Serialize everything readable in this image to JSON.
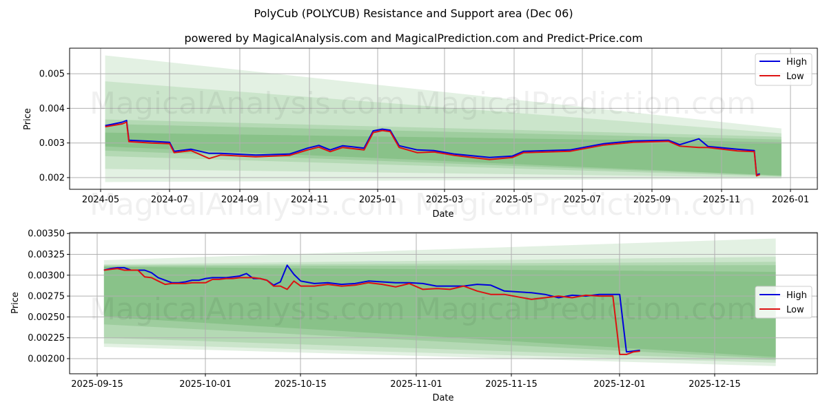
{
  "header": {
    "title": "PolyCub (POLYCUB) Resistance and Support area (Dec 06)",
    "subtitle": "powered by MagicalAnalysis.com and MagicalPrediction.com and Predict-Price.com"
  },
  "watermarks": [
    "MagicalAnalysis.com",
    "MagicalPrediction.com"
  ],
  "colors": {
    "high": "#0000dd",
    "low": "#dd1111",
    "band": "#5aaa5a",
    "grid": "#b0b0b0"
  },
  "chart_data": [
    {
      "type": "line",
      "title": "",
      "xlabel": "Date",
      "ylabel": "Price",
      "x_ticks": [
        "2024-05",
        "2024-07",
        "2024-09",
        "2024-11",
        "2025-01",
        "2025-03",
        "2025-05",
        "2025-07",
        "2025-09",
        "2025-11",
        "2026-01"
      ],
      "y_ticks": [
        "0.002",
        "0.003",
        "0.004",
        "0.005"
      ],
      "ylim": [
        0.00168,
        0.00575
      ],
      "grid": true,
      "legend": {
        "position": "upper right",
        "entries": [
          "High",
          "Low"
        ]
      },
      "x": [
        "2024-05-05",
        "2024-05-20",
        "2024-05-24",
        "2024-05-26",
        "2024-06-15",
        "2024-07-01",
        "2024-07-05",
        "2024-07-20",
        "2024-08-05",
        "2024-08-15",
        "2024-09-15",
        "2024-10-15",
        "2024-10-31",
        "2024-11-10",
        "2024-11-20",
        "2024-12-01",
        "2024-12-20",
        "2024-12-28",
        "2025-01-05",
        "2025-01-12",
        "2025-01-20",
        "2025-02-05",
        "2025-02-20",
        "2025-03-10",
        "2025-04-10",
        "2025-04-30",
        "2025-05-10",
        "2025-06-20",
        "2025-07-20",
        "2025-08-15",
        "2025-09-15",
        "2025-09-25",
        "2025-10-12",
        "2025-10-20",
        "2025-11-15",
        "2025-11-30",
        "2025-12-02",
        "2025-12-05"
      ],
      "series": [
        {
          "name": "High",
          "values": [
            0.0035,
            0.0036,
            0.00365,
            0.00308,
            0.00305,
            0.00302,
            0.00276,
            0.00282,
            0.0027,
            0.0027,
            0.00265,
            0.00268,
            0.00285,
            0.00293,
            0.0028,
            0.00292,
            0.00285,
            0.00335,
            0.0034,
            0.00337,
            0.00292,
            0.0028,
            0.00278,
            0.00268,
            0.00258,
            0.00262,
            0.00276,
            0.0028,
            0.00298,
            0.00306,
            0.00308,
            0.00295,
            0.00312,
            0.0029,
            0.00282,
            0.00278,
            0.00208,
            0.00211
          ]
        },
        {
          "name": "Low",
          "values": [
            0.00347,
            0.00355,
            0.0036,
            0.00304,
            0.003,
            0.00298,
            0.00272,
            0.00278,
            0.00255,
            0.00265,
            0.0026,
            0.00264,
            0.0028,
            0.00288,
            0.00275,
            0.00287,
            0.0028,
            0.0033,
            0.00336,
            0.00333,
            0.00287,
            0.00272,
            0.00274,
            0.00264,
            0.00252,
            0.00258,
            0.00272,
            0.00276,
            0.00294,
            0.00302,
            0.00305,
            0.00291,
            0.00287,
            0.00287,
            0.00277,
            0.00275,
            0.00205,
            0.00209
          ]
        }
      ],
      "bands": [
        {
          "x": [
            "2024-05-05",
            "2025-12-24"
          ],
          "upper": [
            0.00553,
            0.00342
          ],
          "lower": [
            0.00187,
            0.00197
          ]
        },
        {
          "x": [
            "2024-05-05",
            "2025-12-24"
          ],
          "upper": [
            0.00478,
            0.00328
          ],
          "lower": [
            0.00225,
            0.002
          ]
        },
        {
          "x": [
            "2024-05-05",
            "2025-12-24"
          ],
          "upper": [
            0.00368,
            0.00318
          ],
          "lower": [
            0.00262,
            0.00203
          ]
        },
        {
          "x": [
            "2024-05-05",
            "2025-12-24"
          ],
          "upper": [
            0.00355,
            0.0031
          ],
          "lower": [
            0.00278,
            0.00205
          ]
        },
        {
          "x": [
            "2024-05-05",
            "2025-12-24"
          ],
          "upper": [
            0.0033,
            0.00302
          ],
          "lower": [
            0.0029,
            0.00206
          ]
        }
      ]
    },
    {
      "type": "line",
      "title": "",
      "xlabel": "Date",
      "ylabel": "Price",
      "x_ticks": [
        "2025-09-15",
        "2025-10-01",
        "2025-10-15",
        "2025-11-01",
        "2025-11-15",
        "2025-12-01",
        "2025-12-15"
      ],
      "y_ticks": [
        "0.00200",
        "0.00225",
        "0.00250",
        "0.00275",
        "0.00300",
        "0.00325",
        "0.00350"
      ],
      "ylim": [
        0.00183,
        0.00352
      ],
      "grid": true,
      "legend": {
        "position": "center right",
        "entries": [
          "High",
          "Low"
        ]
      },
      "x": [
        "09-16",
        "09-17",
        "09-18",
        "09-19",
        "09-20",
        "09-21",
        "09-22",
        "09-23",
        "09-24",
        "09-25",
        "09-26",
        "09-27",
        "09-28",
        "09-29",
        "09-30",
        "10-01",
        "10-02",
        "10-03",
        "10-04",
        "10-05",
        "10-06",
        "10-07",
        "10-08",
        "10-09",
        "10-10",
        "10-11",
        "10-12",
        "10-13",
        "10-14",
        "10-15",
        "10-17",
        "10-19",
        "10-21",
        "10-23",
        "10-25",
        "10-27",
        "10-29",
        "10-31",
        "11-02",
        "11-04",
        "11-06",
        "11-08",
        "11-10",
        "11-12",
        "11-14",
        "11-16",
        "11-18",
        "11-20",
        "11-22",
        "11-24",
        "11-26",
        "11-28",
        "11-30",
        "12-01",
        "12-02",
        "12-03",
        "12-04"
      ],
      "series": [
        {
          "name": "High",
          "values": [
            0.00306,
            0.00308,
            0.00309,
            0.00309,
            0.00306,
            0.00306,
            0.00306,
            0.00303,
            0.00297,
            0.00294,
            0.00291,
            0.00291,
            0.00292,
            0.00294,
            0.00294,
            0.00296,
            0.00297,
            0.00297,
            0.00297,
            0.00298,
            0.00299,
            0.00302,
            0.00296,
            0.00296,
            0.00294,
            0.00288,
            0.00292,
            0.00312,
            0.00301,
            0.00293,
            0.0029,
            0.00291,
            0.00289,
            0.0029,
            0.00293,
            0.00292,
            0.00291,
            0.00291,
            0.0029,
            0.00287,
            0.00287,
            0.00287,
            0.00289,
            0.00288,
            0.00281,
            0.0028,
            0.00279,
            0.00277,
            0.00273,
            0.00276,
            0.00275,
            0.00277,
            0.00277,
            0.00277,
            0.00208,
            0.00209,
            0.0021
          ]
        },
        {
          "name": "Low",
          "values": [
            0.00306,
            0.00307,
            0.00308,
            0.00306,
            0.00306,
            0.00306,
            0.00298,
            0.00297,
            0.00293,
            0.00289,
            0.0029,
            0.0029,
            0.0029,
            0.00291,
            0.00291,
            0.00291,
            0.00295,
            0.00295,
            0.00296,
            0.00296,
            0.00297,
            0.00297,
            0.00297,
            0.00296,
            0.00294,
            0.00287,
            0.00287,
            0.00283,
            0.00293,
            0.00287,
            0.00287,
            0.00289,
            0.00287,
            0.00288,
            0.00291,
            0.00289,
            0.00286,
            0.0029,
            0.00283,
            0.00284,
            0.00283,
            0.00287,
            0.00281,
            0.00277,
            0.00277,
            0.00274,
            0.00271,
            0.00273,
            0.00275,
            0.00273,
            0.00276,
            0.00275,
            0.00275,
            0.00205,
            0.00205,
            0.00208,
            0.00209
          ]
        }
      ],
      "bands": [
        {
          "x": [
            "2025-09-16",
            "2025-12-24"
          ],
          "upper": [
            0.00318,
            0.00344
          ],
          "lower": [
            0.00214,
            0.00191
          ]
        },
        {
          "x": [
            "2025-09-16",
            "2025-12-24"
          ],
          "upper": [
            0.00313,
            0.00322
          ],
          "lower": [
            0.00218,
            0.00195
          ]
        },
        {
          "x": [
            "2025-09-16",
            "2025-12-24"
          ],
          "upper": [
            0.00312,
            0.00316
          ],
          "lower": [
            0.00225,
            0.00198
          ]
        },
        {
          "x": [
            "2025-09-16",
            "2025-12-24"
          ],
          "upper": [
            0.00311,
            0.00312
          ],
          "lower": [
            0.00241,
            0.002
          ]
        },
        {
          "x": [
            "2025-09-16",
            "2025-12-24"
          ],
          "upper": [
            0.0031,
            0.00304
          ],
          "lower": [
            0.0025,
            0.00202
          ]
        }
      ]
    }
  ]
}
